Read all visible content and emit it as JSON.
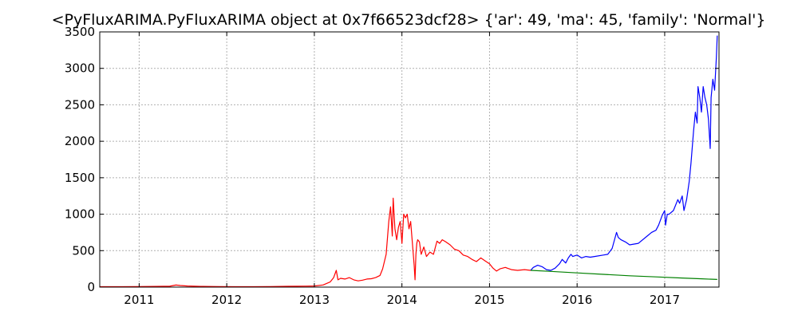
{
  "chart_data": {
    "type": "line",
    "title": "<PyFluxARIMA.PyFluxARIMA object at 0x7f66523dcf28> {'ar': 49, 'ma': 45, 'family': 'Normal'}",
    "xlabel": "",
    "ylabel": "",
    "grid": true,
    "xlim": [
      2010.55,
      2017.62
    ],
    "ylim": [
      0,
      3500
    ],
    "x_ticks": [
      "2011",
      "2012",
      "2013",
      "2014",
      "2015",
      "2016",
      "2017"
    ],
    "y_ticks": [
      "0",
      "500",
      "1000",
      "1500",
      "2000",
      "2500",
      "3000",
      "3500"
    ],
    "series": [
      {
        "color": "#ff0000",
        "x": [
          2010.55,
          2010.8,
          2011.0,
          2011.2,
          2011.35,
          2011.42,
          2011.47,
          2011.55,
          2011.7,
          2011.9,
          2012.1,
          2012.3,
          2012.5,
          2012.7,
          2012.9,
          2013.0,
          2013.1,
          2013.18,
          2013.22,
          2013.25,
          2013.27,
          2013.3,
          2013.35,
          2013.4,
          2013.45,
          2013.5,
          2013.55,
          2013.6,
          2013.65,
          2013.7,
          2013.75,
          2013.78,
          2013.82,
          2013.85,
          2013.87,
          2013.89,
          2013.9,
          2013.92,
          2013.94,
          2013.96,
          2013.98,
          2014.0,
          2014.02,
          2014.04,
          2014.06,
          2014.08,
          2014.1,
          2014.12,
          2014.14,
          2014.15,
          2014.16,
          2014.17,
          2014.18,
          2014.2,
          2014.22,
          2014.25,
          2014.28,
          2014.32,
          2014.36,
          2014.4,
          2014.43,
          2014.46,
          2014.5,
          2014.55,
          2014.6,
          2014.65,
          2014.7,
          2014.75,
          2014.8,
          2014.85,
          2014.9,
          2014.95,
          2015.0,
          2015.04,
          2015.08,
          2015.12,
          2015.18,
          2015.25,
          2015.32,
          2015.4,
          2015.47
        ],
        "values": [
          5,
          5,
          8,
          10,
          12,
          28,
          22,
          15,
          10,
          7,
          6,
          6,
          8,
          11,
          13,
          15,
          30,
          70,
          130,
          230,
          100,
          120,
          110,
          130,
          100,
          85,
          95,
          110,
          115,
          130,
          160,
          250,
          450,
          900,
          1100,
          700,
          1220,
          800,
          650,
          820,
          900,
          600,
          1000,
          950,
          1000,
          800,
          900,
          600,
          300,
          100,
          450,
          600,
          650,
          620,
          450,
          550,
          420,
          480,
          450,
          630,
          600,
          650,
          620,
          580,
          520,
          500,
          440,
          420,
          380,
          350,
          400,
          360,
          320,
          260,
          220,
          250,
          270,
          240,
          230,
          240,
          230
        ]
      },
      {
        "color": "#0000ff",
        "x": [
          2015.47,
          2015.5,
          2015.55,
          2015.6,
          2015.65,
          2015.7,
          2015.75,
          2015.8,
          2015.83,
          2015.87,
          2015.9,
          2015.93,
          2015.95,
          2016.0,
          2016.05,
          2016.1,
          2016.15,
          2016.2,
          2016.3,
          2016.35,
          2016.4,
          2016.45,
          2016.47,
          2016.5,
          2016.55,
          2016.6,
          2016.7,
          2016.8,
          2016.85,
          2016.9,
          2016.93,
          2016.97,
          2017.0,
          2017.01,
          2017.03,
          2017.05,
          2017.1,
          2017.15,
          2017.17,
          2017.2,
          2017.22,
          2017.25,
          2017.28,
          2017.3,
          2017.33,
          2017.35,
          2017.37,
          2017.38,
          2017.4,
          2017.42,
          2017.44,
          2017.46,
          2017.48,
          2017.5,
          2017.52,
          2017.53,
          2017.55,
          2017.57,
          2017.59,
          2017.6
        ],
        "values": [
          230,
          270,
          300,
          280,
          240,
          230,
          260,
          320,
          380,
          330,
          400,
          450,
          420,
          440,
          400,
          420,
          410,
          420,
          440,
          450,
          530,
          750,
          680,
          650,
          620,
          580,
          600,
          700,
          750,
          780,
          850,
          980,
          1050,
          850,
          1000,
          1000,
          1050,
          1200,
          1150,
          1250,
          1050,
          1200,
          1450,
          1700,
          2150,
          2400,
          2250,
          2750,
          2600,
          2400,
          2750,
          2600,
          2500,
          2300,
          1900,
          2600,
          2850,
          2700,
          3150,
          3450
        ]
      },
      {
        "color": "#008000",
        "x": [
          2015.47,
          2015.7,
          2016.0,
          2016.3,
          2016.6,
          2016.9,
          2017.2,
          2017.4,
          2017.6
        ],
        "values": [
          230,
          215,
          195,
          175,
          155,
          140,
          125,
          115,
          105
        ]
      }
    ]
  }
}
